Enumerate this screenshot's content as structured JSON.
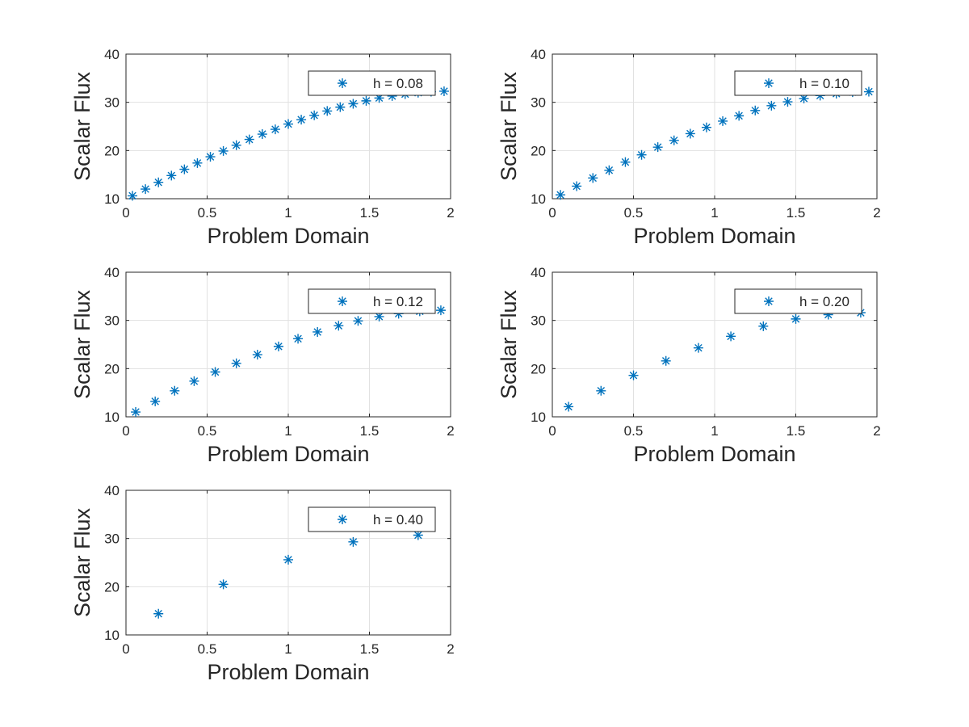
{
  "colors": {
    "marker": "#0072BD",
    "grid": "#e1e1e1",
    "axis": "#262626",
    "background": "#ffffff"
  },
  "chart_data": [
    {
      "type": "scatter",
      "marker": "asterisk",
      "xlabel": "Problem Domain",
      "ylabel": "Scalar Flux",
      "xlim": [
        0,
        2
      ],
      "ylim": [
        10,
        40
      ],
      "xticks": [
        "0",
        "0.5",
        "1",
        "1.5",
        "2"
      ],
      "yticks": [
        "10",
        "20",
        "30",
        "40"
      ],
      "grid": true,
      "legend_position": "top-right",
      "series": [
        {
          "name": "h = 0.08",
          "x": [
            0.04,
            0.12,
            0.2,
            0.28,
            0.36,
            0.44,
            0.52,
            0.6,
            0.68,
            0.76,
            0.84,
            0.92,
            1.0,
            1.08,
            1.16,
            1.24,
            1.32,
            1.4,
            1.48,
            1.56,
            1.64,
            1.72,
            1.8,
            1.88,
            1.96
          ],
          "y": [
            10.6,
            12.0,
            13.4,
            14.8,
            16.1,
            17.4,
            18.7,
            19.9,
            21.1,
            22.3,
            23.4,
            24.4,
            25.5,
            26.4,
            27.3,
            28.2,
            29.0,
            29.7,
            30.3,
            30.9,
            31.3,
            31.7,
            32.0,
            32.2,
            32.3
          ]
        }
      ]
    },
    {
      "type": "scatter",
      "marker": "asterisk",
      "xlabel": "Problem Domain",
      "ylabel": "Scalar Flux",
      "xlim": [
        0,
        2
      ],
      "ylim": [
        10,
        40
      ],
      "xticks": [
        "0",
        "0.5",
        "1",
        "1.5",
        "2"
      ],
      "yticks": [
        "10",
        "20",
        "30",
        "40"
      ],
      "grid": true,
      "legend_position": "top-right",
      "series": [
        {
          "name": "h = 0.10",
          "x": [
            0.05,
            0.15,
            0.25,
            0.35,
            0.45,
            0.55,
            0.65,
            0.75,
            0.85,
            0.95,
            1.05,
            1.15,
            1.25,
            1.35,
            1.45,
            1.55,
            1.65,
            1.75,
            1.85,
            1.95
          ],
          "y": [
            10.8,
            12.6,
            14.3,
            15.9,
            17.6,
            19.1,
            20.7,
            22.1,
            23.5,
            24.8,
            26.1,
            27.2,
            28.3,
            29.3,
            30.1,
            30.8,
            31.4,
            31.8,
            32.1,
            32.2
          ]
        }
      ]
    },
    {
      "type": "scatter",
      "marker": "asterisk",
      "xlabel": "Problem Domain",
      "ylabel": "Scalar Flux",
      "xlim": [
        0,
        2
      ],
      "ylim": [
        10,
        40
      ],
      "xticks": [
        "0",
        "0.5",
        "1",
        "1.5",
        "2"
      ],
      "yticks": [
        "10",
        "20",
        "30",
        "40"
      ],
      "grid": true,
      "legend_position": "top-right",
      "series": [
        {
          "name": "h = 0.12",
          "x": [
            0.06,
            0.18,
            0.3,
            0.42,
            0.55,
            0.68,
            0.81,
            0.94,
            1.06,
            1.18,
            1.31,
            1.43,
            1.56,
            1.68,
            1.81,
            1.94
          ],
          "y": [
            11.0,
            13.2,
            15.4,
            17.4,
            19.3,
            21.1,
            22.9,
            24.6,
            26.2,
            27.6,
            28.9,
            29.9,
            30.8,
            31.4,
            31.9,
            32.1
          ]
        }
      ]
    },
    {
      "type": "scatter",
      "marker": "asterisk",
      "xlabel": "Problem Domain",
      "ylabel": "Scalar Flux",
      "xlim": [
        0,
        2
      ],
      "ylim": [
        10,
        40
      ],
      "xticks": [
        "0",
        "0.5",
        "1",
        "1.5",
        "2"
      ],
      "yticks": [
        "10",
        "20",
        "30",
        "40"
      ],
      "grid": true,
      "legend_position": "top-right",
      "series": [
        {
          "name": "h = 0.20",
          "x": [
            0.1,
            0.3,
            0.5,
            0.7,
            0.9,
            1.1,
            1.3,
            1.5,
            1.7,
            1.9
          ],
          "y": [
            12.1,
            15.4,
            18.6,
            21.6,
            24.3,
            26.7,
            28.8,
            30.3,
            31.2,
            31.6
          ]
        }
      ]
    },
    {
      "type": "scatter",
      "marker": "asterisk",
      "xlabel": "Problem Domain",
      "ylabel": "Scalar Flux",
      "xlim": [
        0,
        2
      ],
      "ylim": [
        10,
        40
      ],
      "xticks": [
        "0",
        "0.5",
        "1",
        "1.5",
        "2"
      ],
      "yticks": [
        "10",
        "20",
        "30",
        "40"
      ],
      "grid": true,
      "legend_position": "top-right",
      "series": [
        {
          "name": "h = 0.40",
          "x": [
            0.2,
            0.6,
            1.0,
            1.4,
            1.8
          ],
          "y": [
            14.4,
            20.5,
            25.6,
            29.3,
            30.7
          ]
        }
      ]
    }
  ]
}
